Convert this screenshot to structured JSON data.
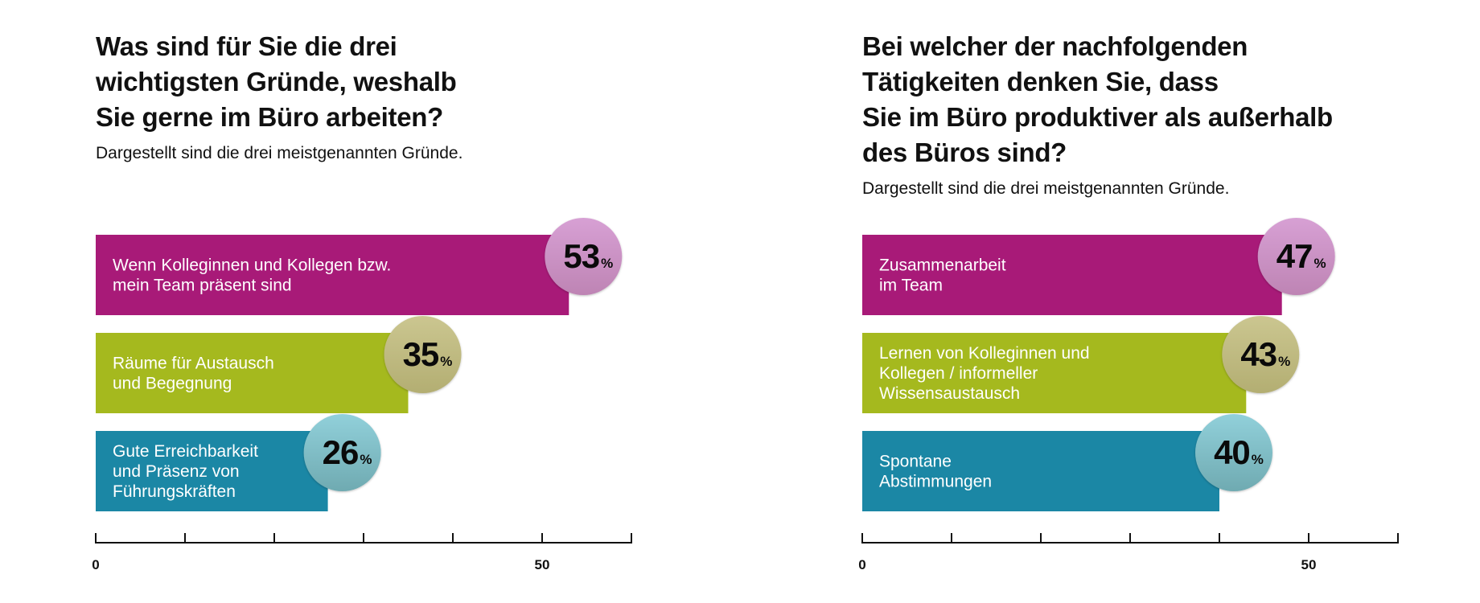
{
  "colors": {
    "bars": [
      "#A81A78",
      "#A5B91E",
      "#1B87A5"
    ],
    "bubbles_top": [
      "#D7A0D4",
      "#CBC690",
      "#91D0DA"
    ],
    "bubbles_bottom": [
      "#BE84B4",
      "#B3AE72",
      "#6FAAB1"
    ],
    "axis": "#111111"
  },
  "chart_data": [
    {
      "type": "bar",
      "orientation": "horizontal",
      "title": "Was sind für Sie die drei\nwichtigsten Gründe, weshalb\nSie gerne im Büro arbeiten?",
      "subtitle": "Dargestellt sind die drei meistgenannten Gründe.",
      "categories": [
        [
          "Wenn Kolleginnen und Kollegen bzw.",
          "mein Team präsent sind"
        ],
        [
          "Räume für Austausch",
          "und Begegnung"
        ],
        [
          "Gute Erreichbarkeit",
          "und Präsenz von",
          "Führungskräften"
        ]
      ],
      "values": [
        53,
        35,
        26
      ],
      "value_suffix": "%",
      "xlim": [
        0,
        60
      ],
      "x_ticks": [
        0,
        10,
        20,
        30,
        40,
        50,
        60
      ],
      "x_tick_labels": {
        "0": "0",
        "50": "50"
      },
      "xlabel": "",
      "ylabel": "",
      "grid": false
    },
    {
      "type": "bar",
      "orientation": "horizontal",
      "title": "Bei welcher der nachfolgenden\nTätigkeiten denken Sie, dass\nSie im Büro produktiver als außerhalb\ndes Büros sind?",
      "subtitle": "Dargestellt sind die drei meistgenannten Gründe.",
      "categories": [
        [
          "Zusammenarbeit",
          "im Team"
        ],
        [
          "Lernen von Kolleginnen und",
          "Kollegen / informeller",
          "Wissensaustausch"
        ],
        [
          "Spontane",
          "Abstimmungen"
        ]
      ],
      "values": [
        47,
        43,
        40
      ],
      "value_suffix": "%",
      "xlim": [
        0,
        60
      ],
      "x_ticks": [
        0,
        10,
        20,
        30,
        40,
        50,
        60
      ],
      "x_tick_labels": {
        "0": "0",
        "50": "50"
      },
      "xlabel": "",
      "ylabel": "",
      "grid": false
    }
  ]
}
